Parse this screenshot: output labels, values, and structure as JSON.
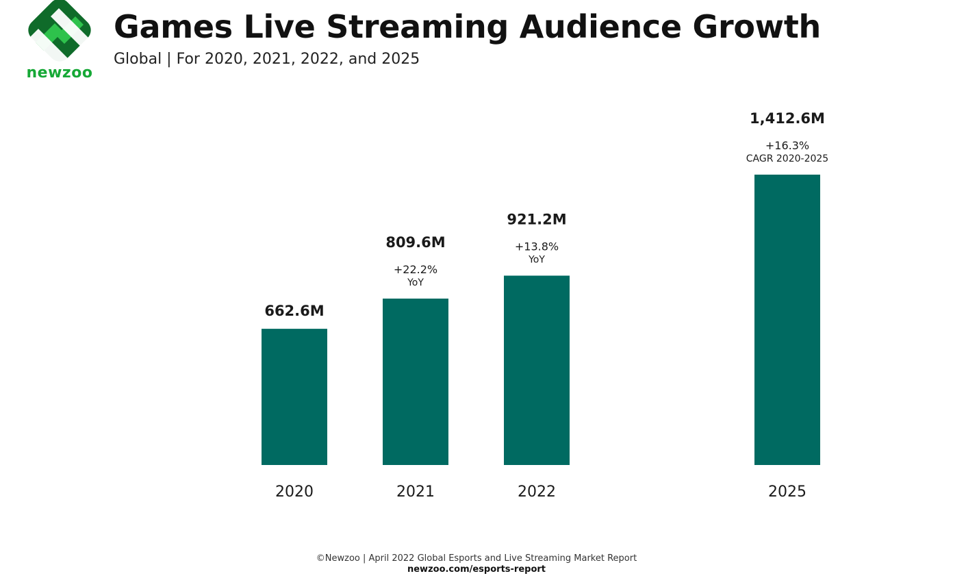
{
  "brand": {
    "name": "newzoo",
    "logo_green": "#16a836",
    "logo_dark": "#0f6b2a"
  },
  "header": {
    "title": "Games Live Streaming Audience Growth",
    "subtitle": "Global | For 2020, 2021, 2022, and 2025"
  },
  "chart_data": {
    "type": "bar",
    "title": "Games Live Streaming Audience Growth",
    "subtitle": "Global | For 2020, 2021, 2022, and 2025",
    "xlabel": "",
    "ylabel": "",
    "categories": [
      "2020",
      "2021",
      "2022",
      "2025"
    ],
    "values": [
      662.6,
      809.6,
      921.2,
      1412.6
    ],
    "unit": "M",
    "ylim": [
      0,
      1412.6
    ],
    "grid": false,
    "bar_color": "#006a61",
    "data_labels": [
      "662.6M",
      "809.6M",
      "921.2M",
      "1,412.6M"
    ],
    "growth_labels": [
      "",
      "+22.2%",
      "+13.8%",
      "+16.3%"
    ],
    "growth_captions": [
      "",
      "YoY",
      "YoY",
      "CAGR 2020-2025"
    ]
  },
  "footer": {
    "source": "©Newzoo | April 2022 Global Esports and Live Streaming Market Report",
    "url": "newzoo.com/esports-report"
  }
}
